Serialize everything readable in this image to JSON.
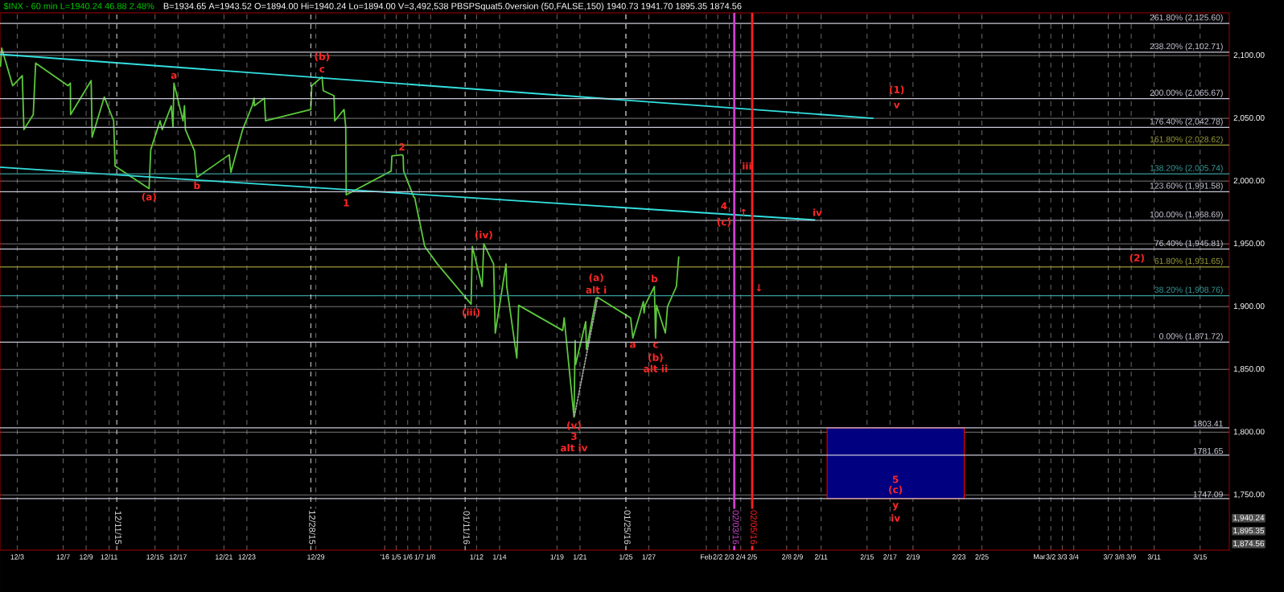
{
  "chart_data": {
    "type": "line",
    "title": "$INX - 60 min  L=1940.24  46.88  2.48%",
    "subtitle": "B=1934.65  A=1943.52  O=1894.00  Hi=1940.24  Lo=1894.00  V=3,492,538  PBSPSquat5.0version (50,FALSE,150)  1940.73  1941.70  1895.35  1874.56",
    "xlim": [
      "2015-12-01T12:00",
      "2016-03-17T13:00"
    ],
    "ylim": [
      1706,
      2134
    ],
    "xticks": [
      {
        "value": "2015-12-03",
        "label": "12/3"
      },
      {
        "value": "2015-12-07",
        "label": "12/7"
      },
      {
        "value": "2015-12-09",
        "label": "12/9"
      },
      {
        "value": "2015-12-11",
        "label": "12/11"
      },
      {
        "value": "2015-12-15",
        "label": "12/15"
      },
      {
        "value": "2015-12-17",
        "label": "12/17"
      },
      {
        "value": "2015-12-21",
        "label": "12/21"
      },
      {
        "value": "2015-12-23",
        "label": "12/23"
      },
      {
        "value": "2015-12-29",
        "label": "12/29"
      },
      {
        "value": "2016-01-04",
        "label": "'16"
      },
      {
        "value": "2016-01-05",
        "label": "1/5"
      },
      {
        "value": "2016-01-06",
        "label": "1/6"
      },
      {
        "value": "2016-01-07",
        "label": "1/7"
      },
      {
        "value": "2016-01-08",
        "label": "1/8"
      },
      {
        "value": "2016-01-12",
        "label": "1/12"
      },
      {
        "value": "2016-01-14",
        "label": "1/14"
      },
      {
        "value": "2016-01-19",
        "label": "1/19"
      },
      {
        "value": "2016-01-21",
        "label": "1/21"
      },
      {
        "value": "2016-01-25",
        "label": "1/25"
      },
      {
        "value": "2016-01-27",
        "label": "1/27"
      },
      {
        "value": "2016-02-01",
        "label": "Feb"
      },
      {
        "value": "2016-02-02",
        "label": "2/2"
      },
      {
        "value": "2016-02-03",
        "label": "2/3"
      },
      {
        "value": "2016-02-04",
        "label": "2/4"
      },
      {
        "value": "2016-02-05",
        "label": "2/5"
      },
      {
        "value": "2016-02-08",
        "label": "2/8"
      },
      {
        "value": "2016-02-09",
        "label": "2/9"
      },
      {
        "value": "2016-02-11",
        "label": "2/11"
      },
      {
        "value": "2016-02-15",
        "label": "2/15"
      },
      {
        "value": "2016-02-17",
        "label": "2/17"
      },
      {
        "value": "2016-02-19",
        "label": "2/19"
      },
      {
        "value": "2016-02-23",
        "label": "2/23"
      },
      {
        "value": "2016-02-25",
        "label": "2/25"
      },
      {
        "value": "2016-03-01",
        "label": "Mar"
      },
      {
        "value": "2016-03-02",
        "label": "3/2"
      },
      {
        "value": "2016-03-03",
        "label": "3/3"
      },
      {
        "value": "2016-03-04",
        "label": "3/4"
      },
      {
        "value": "2016-03-07",
        "label": "3/7"
      },
      {
        "value": "2016-03-08",
        "label": "3/8"
      },
      {
        "value": "2016-03-09",
        "label": "3/9"
      },
      {
        "value": "2016-03-11",
        "label": "3/11"
      },
      {
        "value": "2016-03-15",
        "label": "3/15"
      }
    ],
    "yticks": [
      {
        "value": 1750,
        "label": "1,750.00"
      },
      {
        "value": 1800,
        "label": "1,800.00"
      },
      {
        "value": 1850,
        "label": "1,850.00"
      },
      {
        "value": 1900,
        "label": "1,900.00"
      },
      {
        "value": 1950,
        "label": "1,950.00"
      },
      {
        "value": 2000,
        "label": "2,000.00"
      },
      {
        "value": 2050,
        "label": "2,050.00"
      },
      {
        "value": 2100,
        "label": "2,100.00"
      }
    ],
    "grid": true,
    "series": [
      {
        "color": "#5cc83c",
        "x": [
          "2015-12-01T13:00",
          "2015-12-01T15:30",
          "2015-12-02T14:30",
          "2015-12-03T10:30",
          "2015-12-03T14:00",
          "2015-12-04T09:30",
          "2015-12-04T14:30",
          "2015-12-07T10:00",
          "2015-12-07T15:00",
          "2015-12-07T15:30",
          "2015-12-09T10:30",
          "2015-12-09T12:30",
          "2015-12-10T14:00",
          "2015-12-11T09:30",
          "2015-12-11T12:30",
          "2015-12-14T11:30",
          "2015-12-14T15:00",
          "2015-12-15T10:30",
          "2015-12-15T15:00",
          "2015-12-16T10:00",
          "2015-12-16T13:30",
          "2015-12-16T15:30",
          "2015-12-17T10:30",
          "2015-12-17T13:30",
          "2015-12-17T15:30",
          "2015-12-18T10:30",
          "2015-12-18T15:30",
          "2015-12-21T11:00",
          "2015-12-21T14:30",
          "2015-12-22T15:00",
          "2015-12-23T11:00",
          "2015-12-23T15:00",
          "2015-12-23T15:30",
          "2015-12-24T12:30",
          "2015-12-24T15:00",
          "2015-12-28T13:30",
          "2015-12-28T15:30",
          "2015-12-29T13:00",
          "2015-12-29T15:30",
          "2015-12-30T14:00",
          "2015-12-30T15:30",
          "2015-12-31T11:00",
          "2015-12-31T14:30",
          "2015-12-31T15:30",
          "2016-01-04T13:30",
          "2016-01-04T15:00",
          "2016-01-05T12:00",
          "2016-01-05T14:30",
          "2016-01-05T15:30",
          "2016-01-06T13:00",
          "2016-01-06T14:30",
          "2016-01-07T11:30",
          "2016-01-08T14:00",
          "2016-01-11T12:30",
          "2016-01-11T15:00",
          "2016-01-12T11:30",
          "2016-01-12T15:00",
          "2016-01-13T11:30",
          "2016-01-13T15:00",
          "2016-01-14T13:30",
          "2016-01-14T15:00",
          "2016-01-15T12:00",
          "2016-01-15T16:00",
          "2016-01-19T12:00",
          "2016-01-19T15:00",
          "2016-01-20T11:30",
          "2016-01-20T13:00",
          "2016-01-20T14:00",
          "2016-01-20T15:00",
          "2016-01-21T12:00",
          "2016-01-21T13:30",
          "2016-01-22T10:00",
          "2016-01-22T14:30",
          "2016-01-25T10:00",
          "2016-01-25T14:30",
          "2016-01-26T09:30",
          "2016-01-26T12:30",
          "2016-01-26T14:00",
          "2016-01-26T16:00",
          "2016-01-27T11:30",
          "2016-01-27T14:00",
          "2016-01-27T16:00",
          "2016-01-28T10:30",
          "2016-01-28T15:00",
          "2016-01-29T09:30",
          "2016-01-29T12:00",
          "2016-01-29T14:30"
        ],
        "values": [
          2091,
          2106,
          2076,
          2084,
          2041,
          2053,
          2094,
          2076,
          2078,
          2053,
          2080,
          2035,
          2067,
          2048,
          2012,
          1994,
          2025,
          2048,
          2041,
          2060,
          2043,
          2078,
          2048,
          2060,
          2041,
          2024,
          2003,
          2021,
          2007,
          2041,
          2060,
          2066,
          2060,
          2066,
          2048,
          2057,
          2076,
          2083,
          2072,
          2068,
          2048,
          2057,
          2043,
          1989,
          2008,
          2020,
          2021,
          2020,
          2008,
          1987,
          1987,
          1948,
          1934,
          1902,
          1948,
          1916,
          1950,
          1934,
          1879,
          1934,
          1916,
          1859,
          1901,
          1881,
          1891,
          1812,
          1849,
          1873,
          1854,
          1888,
          1866,
          1907,
          1907,
          1891,
          1875,
          1900,
          1904,
          1895,
          1901,
          1916,
          1875,
          1901,
          1879,
          1900,
          1916,
          1928,
          1940
        ]
      },
      {
        "color": "#33e0e0",
        "x": [
          "2015-12-01T12:00",
          "2016-02-15T13:30"
        ],
        "values": [
          2101,
          2050
        ]
      },
      {
        "color": "#33e0e0",
        "x": [
          "2015-12-01T12:00",
          "2016-02-10T11:30"
        ],
        "values": [
          2011,
          1969
        ]
      },
      {
        "color": "#a0a0a0",
        "line_style": "dotted",
        "x": [
          "2016-01-20T12:30",
          "2016-01-22T13:30"
        ],
        "values": [
          1813,
          1908
        ]
      },
      {
        "type": "area",
        "color": "#000080",
        "x": [
          "2016-02-11T12:30",
          "2016-02-23T11:00"
        ],
        "values": [
          null,
          null
        ],
        "lower": [
          1747.09,
          1747.09
        ],
        "upper": [
          1803.41,
          1803.41
        ]
      }
    ],
    "ref_lines": [
      {
        "axis": "y",
        "value": 2125.6,
        "label": "261.80% (2,125.60)",
        "color": "#c8c8d8"
      },
      {
        "axis": "y",
        "value": 2102.71,
        "label": "238.20% (2,102.71)",
        "color": "#c8c8d8"
      },
      {
        "axis": "y",
        "value": 2065.67,
        "label": "200.00% (2,065.67)",
        "color": "#c8c8d8"
      },
      {
        "axis": "y",
        "value": 2042.78,
        "label": "176.40% (2,042.78)",
        "color": "#c8c8d8"
      },
      {
        "axis": "y",
        "value": 2028.62,
        "label": "161.80% (2,028.62)",
        "color": "#9a9a3a"
      },
      {
        "axis": "y",
        "value": 2005.74,
        "label": "138.20% (2,005.74)",
        "color": "#3a9a9a"
      },
      {
        "axis": "y",
        "value": 1991.58,
        "label": "123.60% (1,991.58)",
        "color": "#c8c8d8"
      },
      {
        "axis": "y",
        "value": 1968.69,
        "label": "100.00% (1,968.69)",
        "color": "#c8c8d8"
      },
      {
        "axis": "y",
        "value": 1945.81,
        "label": "76.40% (1,945.81)",
        "color": "#c8c8d8"
      },
      {
        "axis": "y",
        "value": 1931.65,
        "label": "61.80% (1,931.65)",
        "color": "#9a9a3a"
      },
      {
        "axis": "y",
        "value": 1908.76,
        "label": "38.20% (1,908.76)",
        "color": "#3a9a9a"
      },
      {
        "axis": "y",
        "value": 1871.72,
        "label": "0.00% (1,871.72)",
        "color": "#c8c8d8"
      },
      {
        "axis": "y",
        "value": 1803.41,
        "label": "1803.41",
        "color": "#c8c8d8"
      },
      {
        "axis": "y",
        "value": 1781.65,
        "label": "1781.65",
        "color": "#c8c8d8"
      },
      {
        "axis": "y",
        "value": 1747.09,
        "label": "1747.09",
        "color": "#c8c8d8"
      },
      {
        "axis": "x",
        "value": "2015-12-11T16:00",
        "label": "12/11/15",
        "color": "#e0e0e0",
        "line_style": "dashed"
      },
      {
        "axis": "x",
        "value": "2015-12-28T13:30",
        "label": "12/28/15",
        "color": "#e0e0e0",
        "line_style": "dashed"
      },
      {
        "axis": "x",
        "value": "2016-01-11",
        "label": "01/11/16",
        "color": "#e0e0e0",
        "line_style": "dashed"
      },
      {
        "axis": "x",
        "value": "2016-01-25",
        "label": "01/25/16",
        "color": "#e0e0e0",
        "line_style": "dashed"
      },
      {
        "axis": "x",
        "value": "2016-02-03T10:30",
        "label": "02/03/16",
        "color": "#d040d0",
        "line_style": "solid"
      },
      {
        "axis": "x",
        "value": "2016-02-05",
        "label": "02/05/16",
        "color": "#ff2020",
        "line_style": "solid"
      }
    ],
    "annotations": [
      {
        "text": "(a)",
        "x": "2015-12-14T11:30",
        "y": 1994
      },
      {
        "text": "c",
        "x": "2015-12-29T13:00",
        "y": 2083
      },
      {
        "text": "(b)",
        "x": "2015-12-29T13:00",
        "y": 2083
      },
      {
        "text": "a",
        "x": "2015-12-16T15:30",
        "y": 2078
      },
      {
        "text": "b",
        "x": "2015-12-18T15:30",
        "y": 2003
      },
      {
        "text": "1",
        "x": "2015-12-31T15:30",
        "y": 1989
      },
      {
        "text": "2",
        "x": "2016-01-05T12:00",
        "y": 2021
      },
      {
        "text": "(iv)",
        "x": "2016-01-12T15:00",
        "y": 1950
      },
      {
        "text": "(iii)",
        "x": "2016-01-11T12:30",
        "y": 1902
      },
      {
        "text": "(v)",
        "x": "2016-01-20T11:30",
        "y": 1812
      },
      {
        "text": "3",
        "x": "2016-01-20T11:30",
        "y": 1812
      },
      {
        "text": "alt iv",
        "x": "2016-01-20T11:30",
        "y": 1812
      },
      {
        "text": "alt i",
        "x": "2016-01-22T10:00",
        "y": 1907
      },
      {
        "text": "(a)",
        "x": "2016-01-22T10:00",
        "y": 1907
      },
      {
        "text": "a",
        "x": "2016-01-25T14:30",
        "y": 1875
      },
      {
        "text": "b",
        "x": "2016-01-27T11:30",
        "y": 1916
      },
      {
        "text": "c",
        "x": "2016-01-27T14:00",
        "y": 1875
      },
      {
        "text": "(b)",
        "x": "2016-01-27T14:00",
        "y": 1875
      },
      {
        "text": "alt ii",
        "x": "2016-01-27T14:00",
        "y": 1875
      },
      {
        "text": "4",
        "x": "2016-02-02T13:00",
        "y": 1974
      },
      {
        "text": "(c)",
        "x": "2016-02-02T13:00",
        "y": 1974
      },
      {
        "text": "iii",
        "x": "2016-02-04T13:00",
        "y": 2005.74
      },
      {
        "text": "iv",
        "x": "2016-02-10T16:00",
        "y": 1968.69
      },
      {
        "text": "(1)",
        "x": "2016-02-17T14:00",
        "y": 2065.67
      },
      {
        "text": "v",
        "x": "2016-02-17T14:00",
        "y": 2065.67
      },
      {
        "text": "(2)",
        "x": "2016-03-09T12:00",
        "y": 1931.65
      },
      {
        "text": "(c)",
        "x": "2016-02-17T11:30",
        "y": 1747.09
      },
      {
        "text": "y",
        "x": "2016-02-17T11:30",
        "y": 1747.09
      },
      {
        "text": "5",
        "x": "2016-02-17T11:30",
        "y": 1747.09
      },
      {
        "text": "iv",
        "x": "2016-02-17T11:30",
        "y": 1747.09
      },
      {
        "text": "↑",
        "x": "2016-02-04T06:00",
        "y": 1968.69
      },
      {
        "text": "↓",
        "x": "2016-02-05T14:00",
        "y": 1908.76
      },
      "1,940.24",
      "1,895.35",
      "1,874.56"
    ]
  }
}
